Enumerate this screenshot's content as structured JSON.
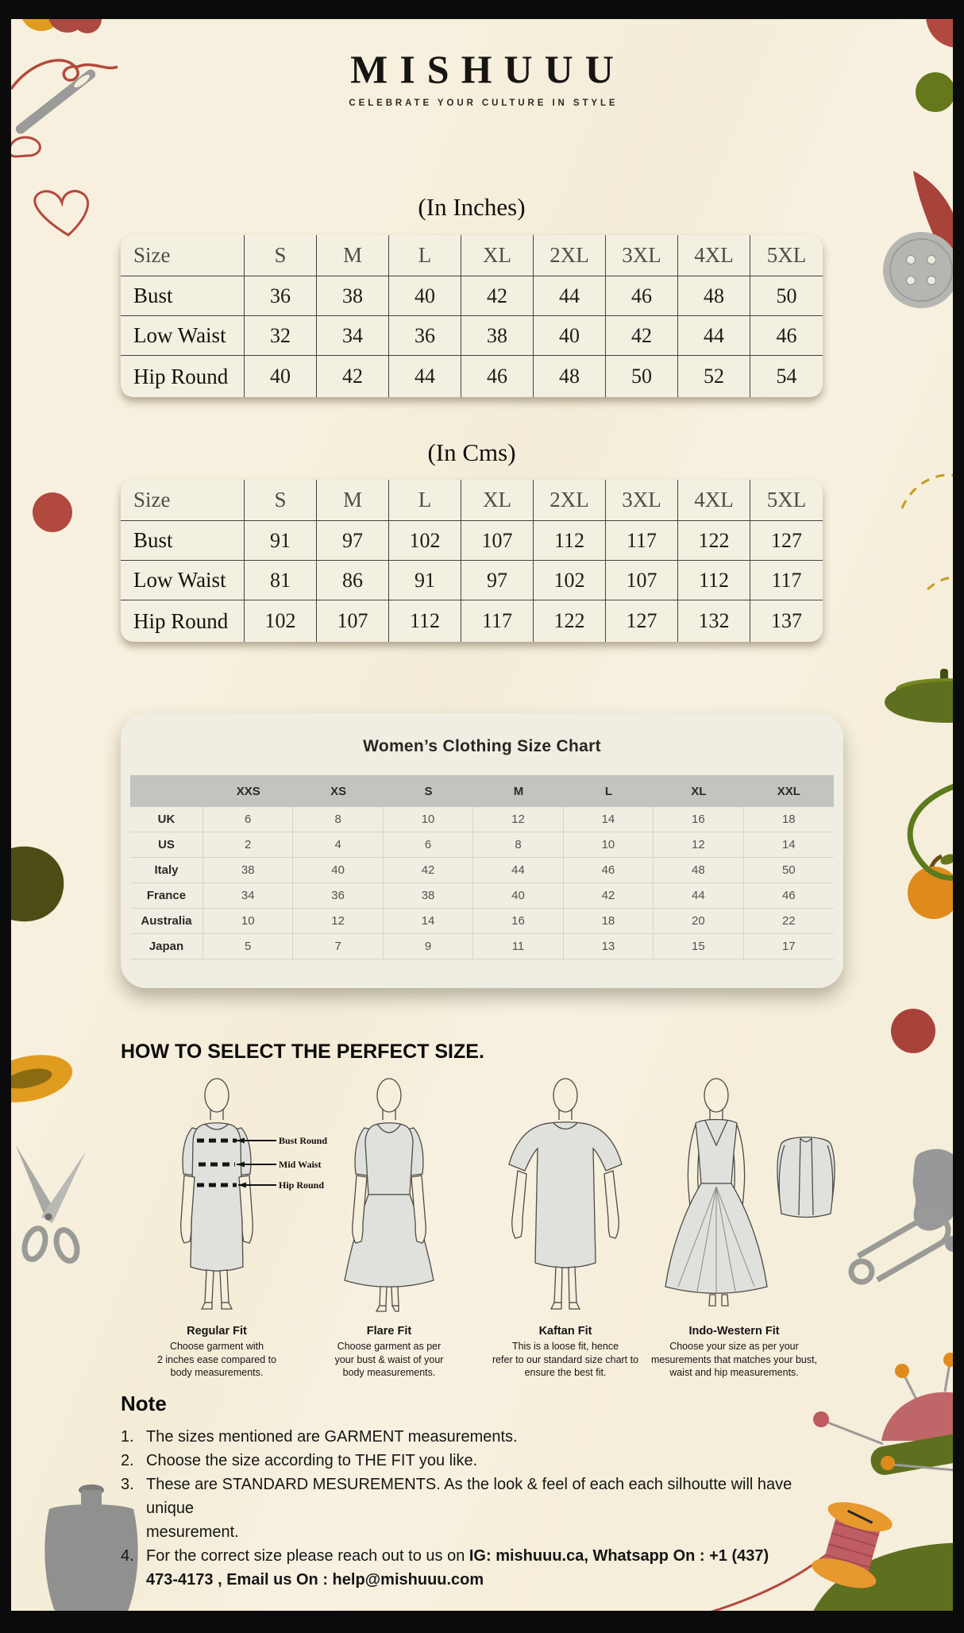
{
  "brand": {
    "name": "MISHUUU",
    "tagline": "CELEBRATE YOUR CULTURE IN STYLE"
  },
  "inches_table": {
    "title": "(In Inches)",
    "corner_label": "Size",
    "columns": [
      "S",
      "M",
      "L",
      "XL",
      "2XL",
      "3XL",
      "4XL",
      "5XL"
    ],
    "rows": [
      {
        "label": "Bust",
        "values": [
          36,
          38,
          40,
          42,
          44,
          46,
          48,
          50
        ]
      },
      {
        "label": "Low Waist",
        "values": [
          32,
          34,
          36,
          38,
          40,
          42,
          44,
          46
        ]
      },
      {
        "label": "Hip Round",
        "values": [
          40,
          42,
          44,
          46,
          48,
          50,
          52,
          54
        ]
      }
    ]
  },
  "cms_table": {
    "title": "(In Cms)",
    "corner_label": "Size",
    "columns": [
      "S",
      "M",
      "L",
      "XL",
      "2XL",
      "3XL",
      "4XL",
      "5XL"
    ],
    "rows": [
      {
        "label": "Bust",
        "values": [
          91,
          97,
          102,
          107,
          112,
          117,
          122,
          127
        ]
      },
      {
        "label": "Low Waist",
        "values": [
          81,
          86,
          91,
          97,
          102,
          107,
          112,
          117
        ]
      },
      {
        "label": "Hip Round",
        "values": [
          102,
          107,
          112,
          117,
          122,
          127,
          132,
          137
        ]
      }
    ]
  },
  "intl_chart": {
    "title": "Women’s Clothing Size Chart",
    "columns": [
      "XXS",
      "XS",
      "S",
      "M",
      "L",
      "XL",
      "XXL"
    ],
    "rows": [
      {
        "label": "UK",
        "values": [
          6,
          8,
          10,
          12,
          14,
          16,
          18
        ]
      },
      {
        "label": "US",
        "values": [
          2,
          4,
          6,
          8,
          10,
          12,
          14
        ]
      },
      {
        "label": "Italy",
        "values": [
          38,
          40,
          42,
          44,
          46,
          48,
          50
        ]
      },
      {
        "label": "France",
        "values": [
          34,
          36,
          38,
          40,
          42,
          44,
          46
        ]
      },
      {
        "label": "Australia",
        "values": [
          10,
          12,
          14,
          16,
          18,
          20,
          22
        ]
      },
      {
        "label": "Japan",
        "values": [
          5,
          7,
          9,
          11,
          13,
          15,
          17
        ]
      }
    ]
  },
  "fit_guide": {
    "heading": "HOW TO SELECT THE PERFECT SIZE.",
    "measure_labels": [
      "Bust Round",
      "Mid Waist",
      "Hip Round"
    ],
    "fits": [
      {
        "name": "Regular Fit",
        "lines": [
          "Choose garment with",
          "2 inches ease compared to",
          "body measurements."
        ]
      },
      {
        "name": "Flare Fit",
        "lines": [
          "Choose garment as per",
          "your bust & waist of your",
          "body measurements."
        ]
      },
      {
        "name": "Kaftan Fit",
        "lines": [
          "This is a loose fit, hence",
          "refer to our standard size chart to",
          "ensure the best fit."
        ]
      },
      {
        "name": "Indo-Western Fit",
        "lines": [
          "Choose your size as per your",
          "mesurements that matches your bust,",
          "waist and hip measurements."
        ]
      }
    ]
  },
  "note": {
    "heading": "Note",
    "items": [
      {
        "parts": [
          {
            "t": "The sizes mentioned are GARMENT measurements."
          }
        ]
      },
      {
        "parts": [
          {
            "t": "Choose the size according to THE FIT you like."
          }
        ]
      },
      {
        "parts": [
          {
            "t": "These are STANDARD MESUREMENTS. As the look & feel of each each silhoutte will have unique "
          },
          {
            "t": "mesurement.",
            "br": true
          }
        ]
      },
      {
        "parts": [
          {
            "t": "For the correct size please reach out to us on "
          },
          {
            "t": "IG: mishuuu.ca, Whatsapp On : +1 (437)",
            "b": true
          },
          {
            "t": "473-4173 , Email us On : help@mishuuu.com",
            "b": true,
            "br": true
          }
        ]
      }
    ]
  },
  "palette": {
    "paper": "#f6efdb",
    "frame": "#0b0b0b",
    "thread_red": "#b2493e",
    "olive_green": "#5e7020",
    "orange": "#df9c1e",
    "rose": "#bf6668",
    "tool_gray": "#9a9a96"
  }
}
